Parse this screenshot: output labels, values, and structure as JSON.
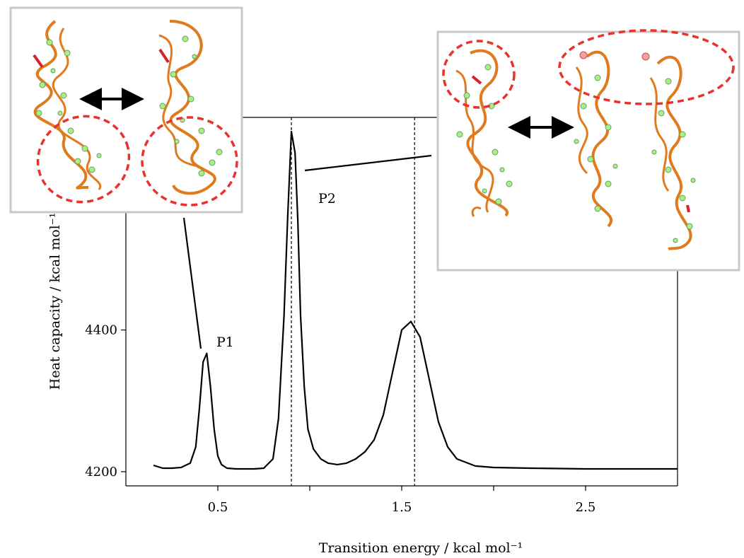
{
  "chart_data": {
    "type": "line",
    "xlabel": "Transition energy / kcal mol⁻¹",
    "ylabel": "Heat capacity / kcal mol⁻¹K⁻¹",
    "xlim": [
      0.0,
      3.0
    ],
    "ylim": [
      4180,
      4700
    ],
    "x_ticks": [
      0.5,
      1.0,
      1.5,
      2.0,
      2.5
    ],
    "x_tick_labels": [
      "0.5",
      "",
      "1.5",
      "",
      "2.5"
    ],
    "y_ticks": [
      4200,
      4400
    ],
    "y_tick_labels": [
      "4200",
      "4400"
    ],
    "grid": false,
    "series": [
      {
        "x": [
          0.15,
          0.2,
          0.25,
          0.3,
          0.35,
          0.38,
          0.4,
          0.42,
          0.44,
          0.46,
          0.48,
          0.5,
          0.52,
          0.55,
          0.6,
          0.65,
          0.7,
          0.75,
          0.8,
          0.83,
          0.86,
          0.88,
          0.9,
          0.92,
          0.935,
          0.95,
          0.97,
          0.99,
          1.02,
          1.06,
          1.1,
          1.15,
          1.2,
          1.25,
          1.3,
          1.35,
          1.4,
          1.45,
          1.5,
          1.55,
          1.6,
          1.65,
          1.7,
          1.75,
          1.8,
          1.9,
          2.0,
          2.2,
          2.5,
          3.0
        ],
        "y": [
          4209,
          4205,
          4205,
          4206,
          4212,
          4235,
          4290,
          4355,
          4367,
          4320,
          4260,
          4222,
          4210,
          4205,
          4204,
          4204,
          4204,
          4205,
          4218,
          4275,
          4420,
          4560,
          4680,
          4650,
          4555,
          4420,
          4320,
          4260,
          4232,
          4218,
          4212,
          4210,
          4212,
          4218,
          4228,
          4245,
          4280,
          4340,
          4400,
          4412,
          4390,
          4330,
          4270,
          4235,
          4218,
          4208,
          4206,
          4205,
          4204,
          4204
        ]
      }
    ],
    "vlines": [
      0.9,
      1.57
    ],
    "annotations": [
      {
        "label": "P1",
        "x": 0.44,
        "y": 4367
      },
      {
        "label": "P2",
        "x": 0.95,
        "y": 4650
      }
    ]
  },
  "insets": {
    "left": {
      "stroke": "#c8c8c8"
    },
    "right": {
      "stroke": "#c8c8c8"
    },
    "highlight_color": "#e8322e",
    "backbone_color": "#e07a1c",
    "base_color": "#a8f080"
  }
}
